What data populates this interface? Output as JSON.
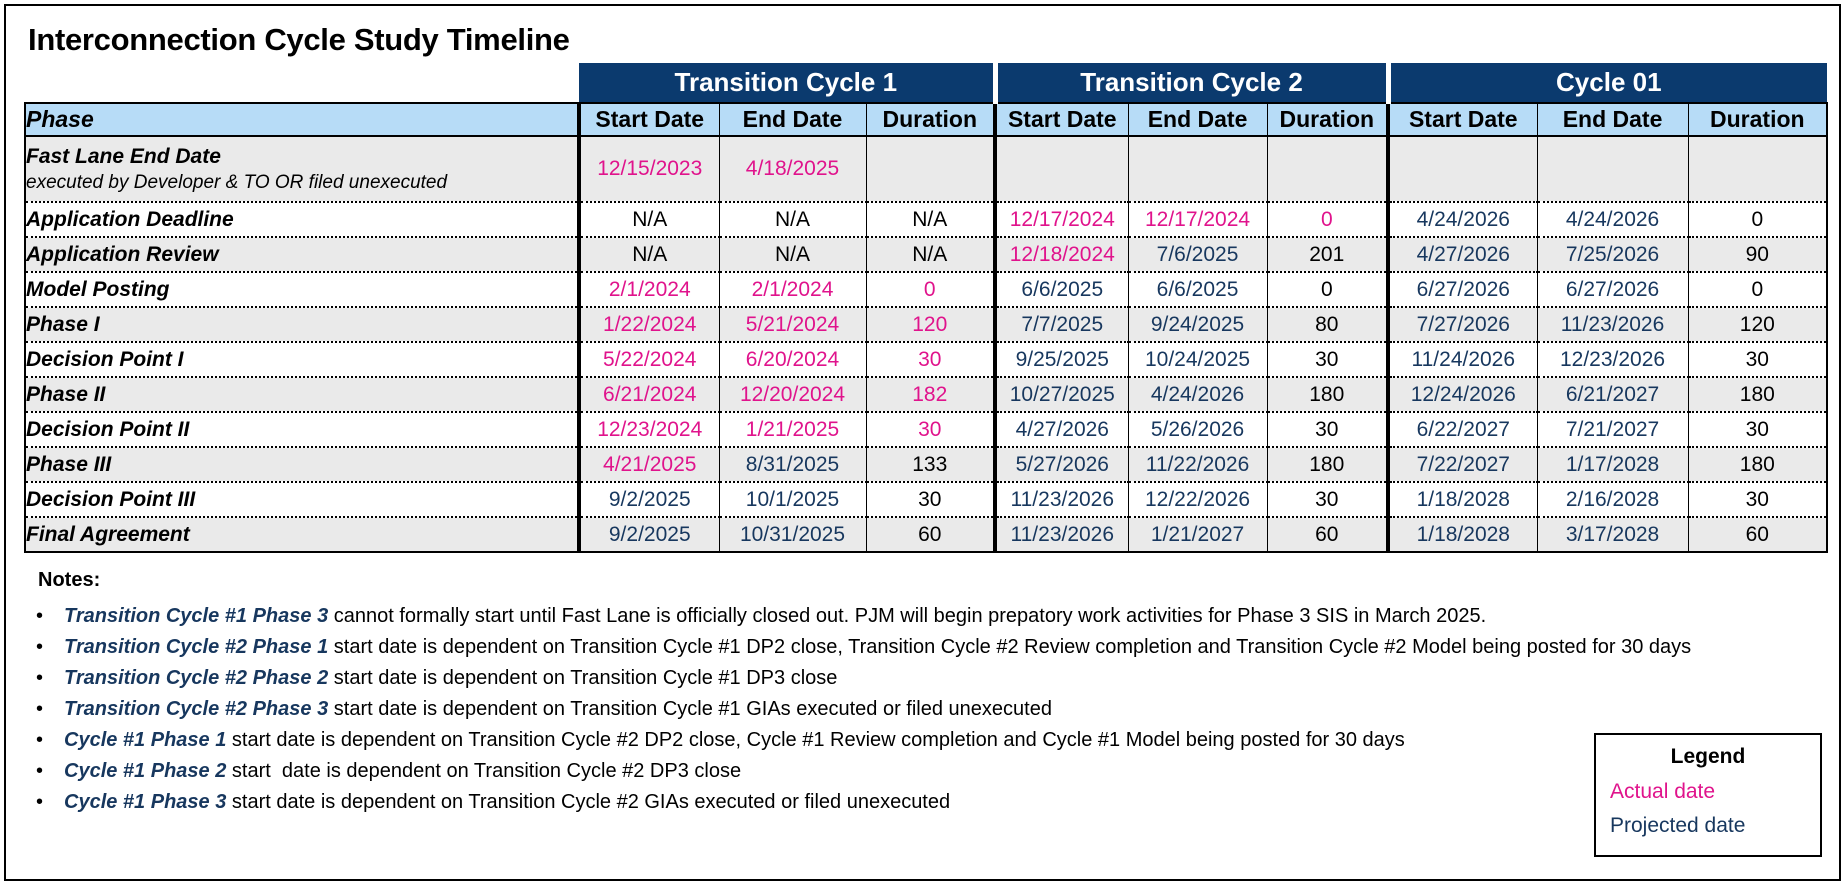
{
  "title": "Interconnection Cycle Study Timeline",
  "colors": {
    "actual": "#e0138c",
    "projected": "#17375e",
    "header_dark": "#0b3a6e",
    "header_light": "#b7dcf7",
    "row_shade": "#eaeaea"
  },
  "table": {
    "groups": [
      "Transition Cycle 1",
      "Transition Cycle 2",
      "Cycle 01"
    ],
    "phase_header": "Phase",
    "sub_headers": [
      "Start Date",
      "End Date",
      "Duration"
    ],
    "rows": [
      {
        "phase": "Fast Lane End Date",
        "phase_sub": "executed by Developer & TO OR filed unexecuted",
        "cells": [
          {
            "v": "12/15/2023",
            "s": "a"
          },
          {
            "v": "4/18/2025",
            "s": "a"
          },
          {
            "v": "",
            "s": "k"
          },
          {
            "v": "",
            "s": "k"
          },
          {
            "v": "",
            "s": "k"
          },
          {
            "v": "",
            "s": "k"
          },
          {
            "v": "",
            "s": "k"
          },
          {
            "v": "",
            "s": "k"
          },
          {
            "v": "",
            "s": "k"
          }
        ]
      },
      {
        "phase": "Application Deadline",
        "cells": [
          {
            "v": "N/A",
            "s": "k"
          },
          {
            "v": "N/A",
            "s": "k"
          },
          {
            "v": "N/A",
            "s": "k"
          },
          {
            "v": "12/17/2024",
            "s": "a"
          },
          {
            "v": "12/17/2024",
            "s": "a"
          },
          {
            "v": "0",
            "s": "a"
          },
          {
            "v": "4/24/2026",
            "s": "p"
          },
          {
            "v": "4/24/2026",
            "s": "p"
          },
          {
            "v": "0",
            "s": "k"
          }
        ]
      },
      {
        "phase": "Application Review",
        "cells": [
          {
            "v": "N/A",
            "s": "k"
          },
          {
            "v": "N/A",
            "s": "k"
          },
          {
            "v": "N/A",
            "s": "k"
          },
          {
            "v": "12/18/2024",
            "s": "a"
          },
          {
            "v": "7/6/2025",
            "s": "p"
          },
          {
            "v": "201",
            "s": "k"
          },
          {
            "v": "4/27/2026",
            "s": "p"
          },
          {
            "v": "7/25/2026",
            "s": "p"
          },
          {
            "v": "90",
            "s": "k"
          }
        ]
      },
      {
        "phase": "Model Posting",
        "cells": [
          {
            "v": "2/1/2024",
            "s": "a"
          },
          {
            "v": "2/1/2024",
            "s": "a"
          },
          {
            "v": "0",
            "s": "a"
          },
          {
            "v": "6/6/2025",
            "s": "p"
          },
          {
            "v": "6/6/2025",
            "s": "p"
          },
          {
            "v": "0",
            "s": "k"
          },
          {
            "v": "6/27/2026",
            "s": "p"
          },
          {
            "v": "6/27/2026",
            "s": "p"
          },
          {
            "v": "0",
            "s": "k"
          }
        ]
      },
      {
        "phase": "Phase I",
        "cells": [
          {
            "v": "1/22/2024",
            "s": "a"
          },
          {
            "v": "5/21/2024",
            "s": "a"
          },
          {
            "v": "120",
            "s": "a"
          },
          {
            "v": "7/7/2025",
            "s": "p"
          },
          {
            "v": "9/24/2025",
            "s": "p"
          },
          {
            "v": "80",
            "s": "k"
          },
          {
            "v": "7/27/2026",
            "s": "p"
          },
          {
            "v": "11/23/2026",
            "s": "p"
          },
          {
            "v": "120",
            "s": "k"
          }
        ]
      },
      {
        "phase": "Decision Point I",
        "cells": [
          {
            "v": "5/22/2024",
            "s": "a"
          },
          {
            "v": "6/20/2024",
            "s": "a"
          },
          {
            "v": "30",
            "s": "a"
          },
          {
            "v": "9/25/2025",
            "s": "p"
          },
          {
            "v": "10/24/2025",
            "s": "p"
          },
          {
            "v": "30",
            "s": "k"
          },
          {
            "v": "11/24/2026",
            "s": "p"
          },
          {
            "v": "12/23/2026",
            "s": "p"
          },
          {
            "v": "30",
            "s": "k"
          }
        ]
      },
      {
        "phase": "Phase II",
        "cells": [
          {
            "v": "6/21/2024",
            "s": "a"
          },
          {
            "v": "12/20/2024",
            "s": "a"
          },
          {
            "v": "182",
            "s": "a"
          },
          {
            "v": "10/27/2025",
            "s": "p"
          },
          {
            "v": "4/24/2026",
            "s": "p"
          },
          {
            "v": "180",
            "s": "k"
          },
          {
            "v": "12/24/2026",
            "s": "p"
          },
          {
            "v": "6/21/2027",
            "s": "p"
          },
          {
            "v": "180",
            "s": "k"
          }
        ]
      },
      {
        "phase": "Decision Point II",
        "cells": [
          {
            "v": "12/23/2024",
            "s": "a"
          },
          {
            "v": "1/21/2025",
            "s": "a"
          },
          {
            "v": "30",
            "s": "a"
          },
          {
            "v": "4/27/2026",
            "s": "p"
          },
          {
            "v": "5/26/2026",
            "s": "p"
          },
          {
            "v": "30",
            "s": "k"
          },
          {
            "v": "6/22/2027",
            "s": "p"
          },
          {
            "v": "7/21/2027",
            "s": "p"
          },
          {
            "v": "30",
            "s": "k"
          }
        ]
      },
      {
        "phase": "Phase III",
        "cells": [
          {
            "v": "4/21/2025",
            "s": "a"
          },
          {
            "v": "8/31/2025",
            "s": "p"
          },
          {
            "v": "133",
            "s": "k"
          },
          {
            "v": "5/27/2026",
            "s": "p"
          },
          {
            "v": "11/22/2026",
            "s": "p"
          },
          {
            "v": "180",
            "s": "k"
          },
          {
            "v": "7/22/2027",
            "s": "p"
          },
          {
            "v": "1/17/2028",
            "s": "p"
          },
          {
            "v": "180",
            "s": "k"
          }
        ]
      },
      {
        "phase": "Decision Point III",
        "cells": [
          {
            "v": "9/2/2025",
            "s": "p"
          },
          {
            "v": "10/1/2025",
            "s": "p"
          },
          {
            "v": "30",
            "s": "k"
          },
          {
            "v": "11/23/2026",
            "s": "p"
          },
          {
            "v": "12/22/2026",
            "s": "p"
          },
          {
            "v": "30",
            "s": "k"
          },
          {
            "v": "1/18/2028",
            "s": "p"
          },
          {
            "v": "2/16/2028",
            "s": "p"
          },
          {
            "v": "30",
            "s": "k"
          }
        ]
      },
      {
        "phase": "Final Agreement",
        "cells": [
          {
            "v": "9/2/2025",
            "s": "p"
          },
          {
            "v": "10/31/2025",
            "s": "p"
          },
          {
            "v": "60",
            "s": "k"
          },
          {
            "v": "11/23/2026",
            "s": "p"
          },
          {
            "v": "1/21/2027",
            "s": "p"
          },
          {
            "v": "60",
            "s": "k"
          },
          {
            "v": "1/18/2028",
            "s": "p"
          },
          {
            "v": "3/17/2028",
            "s": "p"
          },
          {
            "v": "60",
            "s": "k"
          }
        ]
      }
    ]
  },
  "notes": {
    "title": "Notes:",
    "bullet": "•",
    "items": [
      {
        "lead": "Transition Cycle  #1 Phase 3",
        "text": " cannot formally start until Fast Lane is officially closed out. PJM will begin prepatory work activities for Phase 3 SIS in March 2025."
      },
      {
        "lead": "Transition Cycle #2 Phase 1",
        "text": " start date is dependent on Transition Cycle #1 DP2 close, Transition Cycle #2 Review completion and Transition Cycle #2 Model being posted for 30 days"
      },
      {
        "lead": "Transition Cycle #2 Phase 2",
        "text": " start date is dependent on Transition Cycle #1 DP3 close"
      },
      {
        "lead": "Transition Cycle #2 Phase 3",
        "text": " start date is dependent on Transition Cycle #1 GIAs executed or filed unexecuted"
      },
      {
        "lead": "Cycle #1 Phase 1",
        "text": " start date is dependent on Transition Cycle #2 DP2 close, Cycle #1 Review completion and Cycle #1 Model being posted for 30 days"
      },
      {
        "lead": "Cycle #1 Phase 2",
        "text": " start  date is dependent on Transition Cycle #2 DP3 close"
      },
      {
        "lead": "Cycle #1 Phase 3",
        "text": " start date is dependent on Transition Cycle #2 GIAs executed or filed unexecuted"
      }
    ]
  },
  "legend": {
    "title": "Legend",
    "actual": "Actual date",
    "projected": "Projected date"
  }
}
